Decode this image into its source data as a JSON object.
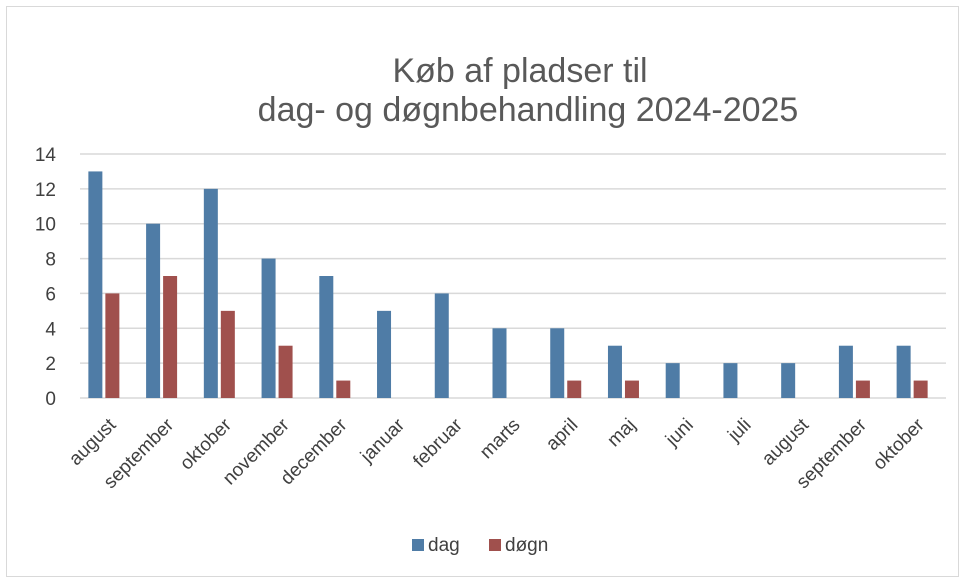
{
  "chart_data": {
    "type": "bar",
    "title_lines": [
      "Køb af pladser til",
      "dag- og døgnbehandling 2024-2025"
    ],
    "categories": [
      "august",
      "september",
      "oktober",
      "november",
      "december",
      "januar",
      "februar",
      "marts",
      "april",
      "maj",
      "juni",
      "juli",
      "august",
      "september",
      "oktober"
    ],
    "series": [
      {
        "name": "dag",
        "color": "#4f7ca6",
        "values": [
          13,
          10,
          12,
          8,
          7,
          5,
          6,
          4,
          4,
          3,
          2,
          2,
          2,
          3,
          3
        ]
      },
      {
        "name": "døgn",
        "color": "#a0504d",
        "values": [
          6,
          7,
          5,
          3,
          1,
          0,
          0,
          0,
          1,
          1,
          0,
          0,
          0,
          1,
          1
        ]
      }
    ],
    "ylim": [
      0,
      14
    ],
    "yticks": [
      0,
      2,
      4,
      6,
      8,
      10,
      12,
      14
    ],
    "grid": true,
    "legend_position": "bottom",
    "xlabel": "",
    "ylabel": ""
  }
}
